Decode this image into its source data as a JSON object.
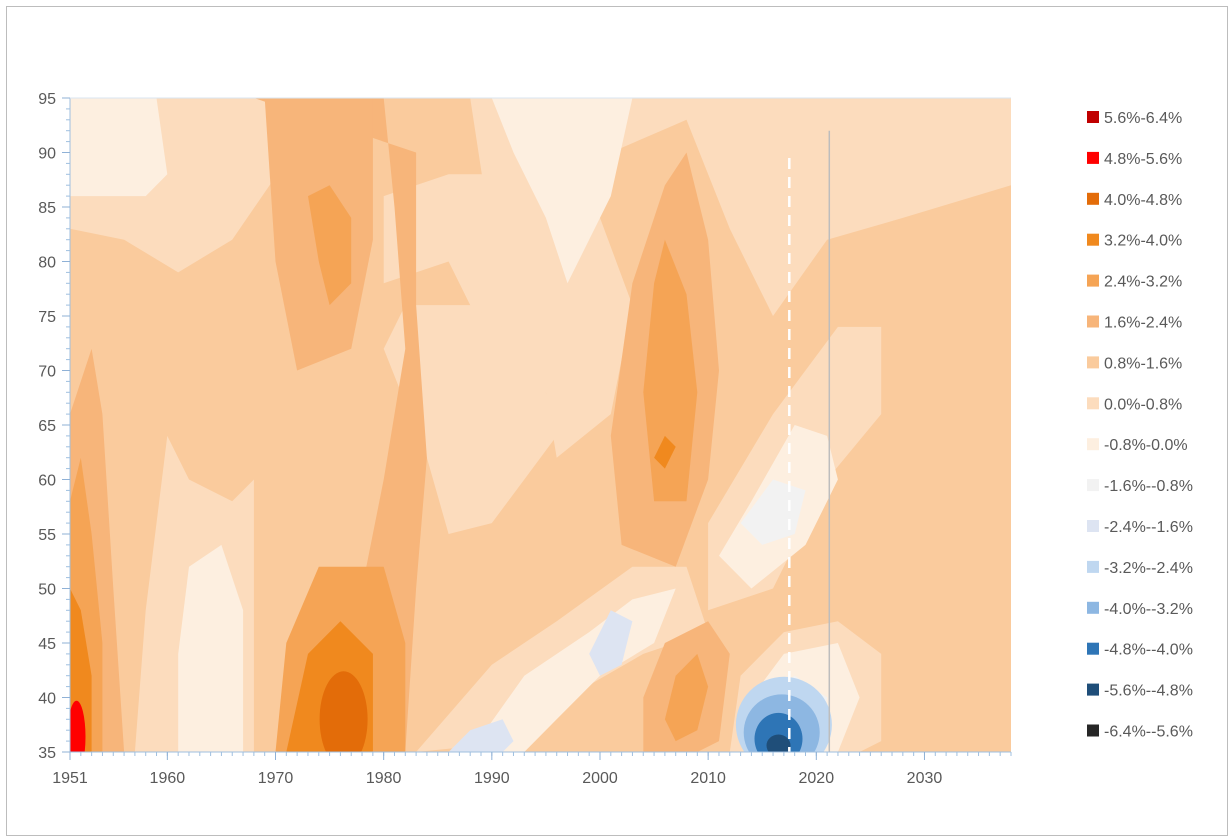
{
  "chart_data": {
    "type": "heatmap",
    "subtype": "filled-contour",
    "title": "",
    "xlabel": "",
    "ylabel": "",
    "xlim": [
      1951,
      2038
    ],
    "ylim": [
      35,
      95
    ],
    "x_ticks": [
      1951,
      1960,
      1970,
      1980,
      1990,
      2000,
      2010,
      2020,
      2030
    ],
    "y_ticks": [
      35,
      40,
      45,
      50,
      55,
      60,
      65,
      70,
      75,
      80,
      85,
      90,
      95
    ],
    "grid": false,
    "legend_position": "right",
    "reference_lines": [
      {
        "x": 2017.5,
        "style": "dashed",
        "color": "#ffffff"
      },
      {
        "x": 2021.2,
        "style": "solid",
        "color": "#bdbdbd"
      }
    ],
    "levels": [
      {
        "label": "5.6%-6.4%",
        "color": "#c00000"
      },
      {
        "label": "4.8%-5.6%",
        "color": "#ff0000"
      },
      {
        "label": "4.0%-4.8%",
        "color": "#e36c09"
      },
      {
        "label": "3.2%-4.0%",
        "color": "#f0891e"
      },
      {
        "label": "2.4%-3.2%",
        "color": "#f5a455"
      },
      {
        "label": "1.6%-2.4%",
        "color": "#f7b57a"
      },
      {
        "label": "0.8%-1.6%",
        "color": "#facb9d"
      },
      {
        "label": "0.0%-0.8%",
        "color": "#fcdcbd"
      },
      {
        "label": "-0.8%-0.0%",
        "color": "#fdefe0"
      },
      {
        "label": "-1.6%--0.8%",
        "color": "#f2f2f2"
      },
      {
        "label": "-2.4%--1.6%",
        "color": "#dde4f2"
      },
      {
        "label": "-3.2%--2.4%",
        "color": "#bfd7f0"
      },
      {
        "label": "-4.0%--3.2%",
        "color": "#8db7e2"
      },
      {
        "label": "-4.8%--4.0%",
        "color": "#2e75b6"
      },
      {
        "label": "-5.6%--4.8%",
        "color": "#1f4e79"
      },
      {
        "label": "-6.4%--5.6%",
        "color": "#262626"
      }
    ],
    "features": [
      {
        "x": 1951.5,
        "y": 36.5,
        "level": "4.8%-5.6%"
      },
      {
        "x": 1953,
        "y": 45,
        "level": "4.0%-4.8%"
      },
      {
        "x": 1964,
        "y": 43,
        "level": "-0.8%-0.0%"
      },
      {
        "x": 1955,
        "y": 91,
        "level": "-0.8%-0.0%"
      },
      {
        "x": 1976.5,
        "y": 37.5,
        "level": "4.0%-4.8%"
      },
      {
        "x": 1976,
        "y": 42,
        "level": "3.2%-4.0%"
      },
      {
        "x": 1974,
        "y": 80,
        "level": "2.4%-3.2%"
      },
      {
        "x": 1996,
        "y": 88,
        "level": "-0.8%-0.0%"
      },
      {
        "x": 2006,
        "y": 63.5,
        "level": "3.2%-4.0%"
      },
      {
        "x": 2006,
        "y": 65,
        "level": "2.4%-3.2%"
      },
      {
        "x": 2008,
        "y": 41,
        "level": "2.4%-3.2%"
      },
      {
        "x": 2001,
        "y": 46,
        "level": "-1.6%--0.8%"
      },
      {
        "x": 1989,
        "y": 37,
        "level": "-2.4%--1.6%"
      },
      {
        "x": 2016,
        "y": 58,
        "level": "-2.4%--1.6%"
      },
      {
        "x": 2016.5,
        "y": 35.5,
        "level": "-5.6%--4.8%"
      },
      {
        "x": 2016.5,
        "y": 37,
        "level": "-4.8%--4.0%"
      },
      {
        "x": 2016.5,
        "y": 38.5,
        "level": "-4.0%--3.2%"
      },
      {
        "x": 2017,
        "y": 40,
        "level": "-3.2%--2.4%"
      }
    ]
  }
}
